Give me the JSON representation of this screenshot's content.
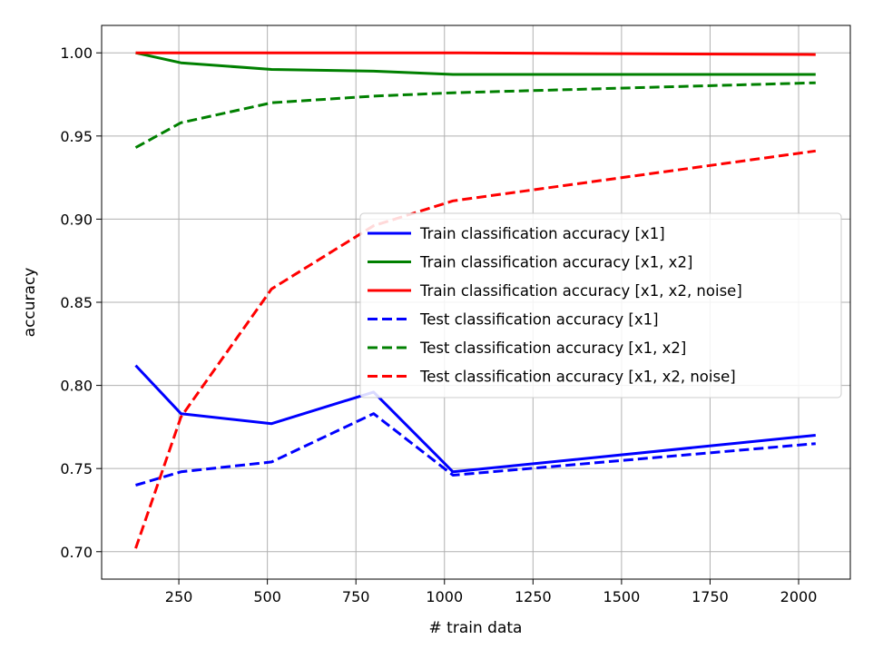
{
  "chart_data": {
    "type": "line",
    "xlabel": "# train data",
    "ylabel": "accuracy",
    "xlim": [
      32,
      2146
    ],
    "ylim": [
      0.6835,
      1.0165
    ],
    "xticks": [
      250,
      500,
      750,
      1000,
      1250,
      1500,
      1750,
      2000
    ],
    "xtick_labels": [
      "250",
      "500",
      "750",
      "1000",
      "1250",
      "1500",
      "1750",
      "2000"
    ],
    "yticks": [
      0.7,
      0.75,
      0.8,
      0.85,
      0.9,
      0.95,
      1.0
    ],
    "ytick_labels": [
      "0.70",
      "0.75",
      "0.80",
      "0.85",
      "0.90",
      "0.95",
      "1.00"
    ],
    "grid": true,
    "legend_position": "center-right",
    "x": [
      128,
      256,
      512,
      800,
      1024,
      2048
    ],
    "series": [
      {
        "name": "Train classification accuracy [x1]",
        "color": "#0000ff",
        "dash": "solid",
        "values": [
          0.812,
          0.783,
          0.777,
          0.796,
          0.748,
          0.77
        ]
      },
      {
        "name": "Train classification accuracy [x1, x2]",
        "color": "#008000",
        "dash": "solid",
        "values": [
          1.0,
          0.994,
          0.99,
          0.989,
          0.987,
          0.987
        ]
      },
      {
        "name": "Train classification accuracy [x1, x2, noise]",
        "color": "#ff0000",
        "dash": "solid",
        "values": [
          1.0,
          1.0,
          1.0,
          1.0,
          1.0,
          0.999
        ]
      },
      {
        "name": "Test classification accuracy [x1]",
        "color": "#0000ff",
        "dash": "dashed",
        "values": [
          0.74,
          0.748,
          0.754,
          0.783,
          0.746,
          0.765
        ]
      },
      {
        "name": "Test classification accuracy [x1, x2]",
        "color": "#008000",
        "dash": "dashed",
        "values": [
          0.943,
          0.958,
          0.97,
          0.974,
          0.976,
          0.982
        ]
      },
      {
        "name": "Test classification accuracy [x1, x2, noise]",
        "color": "#ff0000",
        "dash": "dashed",
        "values": [
          0.702,
          0.781,
          0.858,
          0.896,
          0.911,
          0.941
        ]
      }
    ]
  }
}
